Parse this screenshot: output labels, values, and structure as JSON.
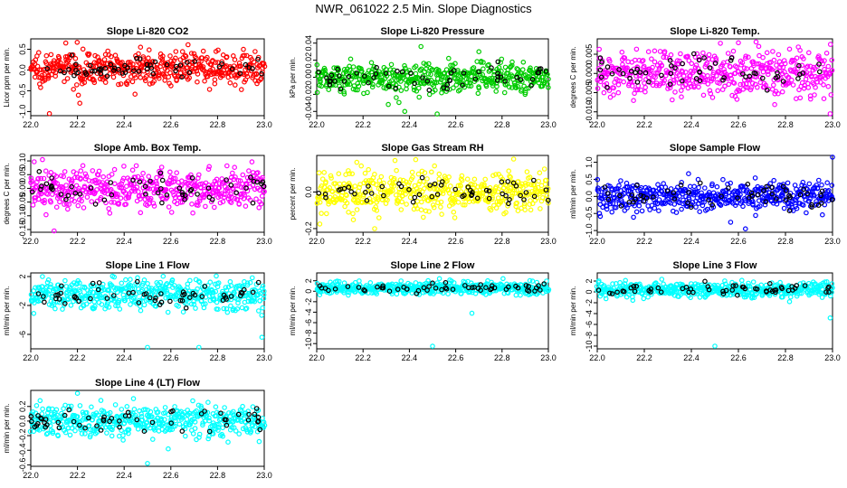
{
  "figure_title": "NWR_061022  2.5 Min. Slope Diagnostics",
  "chart_data": [
    {
      "type": "scatter",
      "title": "Slope Li-820 CO2",
      "xlabel": "",
      "ylabel": "Licor ppm per min.",
      "color": "#ff0000",
      "highlight_color": "#000000",
      "xlim": [
        22.0,
        23.0
      ],
      "ylim": [
        -1.1,
        0.75
      ],
      "xticks": [
        "22.0",
        "22.2",
        "22.4",
        "22.6",
        "22.8",
        "23.0"
      ],
      "yticks": [
        "-1.0",
        "-0.5",
        "0.0",
        "0.5"
      ],
      "yticks_values": [
        -1.0,
        -0.5,
        0.0,
        0.5
      ],
      "center": 0.05,
      "spread": 0.25,
      "outliers": [
        [
          22.08,
          -1.05
        ],
        [
          22.15,
          0.65
        ],
        [
          22.47,
          0.55
        ],
        [
          22.21,
          -0.8
        ]
      ]
    },
    {
      "type": "scatter",
      "title": "Slope Li-820 Pressure",
      "xlabel": "",
      "ylabel": "kPa per min.",
      "color": "#00cc00",
      "highlight_color": "#000000",
      "xlim": [
        22.0,
        23.0
      ],
      "ylim": [
        -0.045,
        0.045
      ],
      "xticks": [
        "22.0",
        "22.2",
        "22.4",
        "22.6",
        "22.8",
        "23.0"
      ],
      "yticks": [
        "-0.04",
        "-0.02",
        "0.00",
        "0.02",
        "0.04"
      ],
      "yticks_values": [
        -0.04,
        -0.02,
        0.0,
        0.02,
        0.04
      ],
      "center": 0.0,
      "spread": 0.012,
      "outliers": [
        [
          22.38,
          -0.04
        ],
        [
          22.45,
          0.036
        ],
        [
          22.52,
          -0.043
        ],
        [
          22.7,
          0.03
        ]
      ]
    },
    {
      "type": "scatter",
      "title": "Slope Li-820 Temp.",
      "xlabel": "",
      "ylabel": "degrees C per min.",
      "color": "#ff00ff",
      "highlight_color": "#000000",
      "xlim": [
        22.0,
        23.0
      ],
      "ylim": [
        -0.011,
        0.009
      ],
      "xticks": [
        "22.0",
        "22.2",
        "22.4",
        "22.6",
        "22.8",
        "23.0"
      ],
      "yticks": [
        "-0.010",
        "-0.005",
        "0.000",
        "0.005"
      ],
      "yticks_values": [
        -0.01,
        -0.005,
        0.0,
        0.005
      ],
      "center": 0.0,
      "spread": 0.004,
      "outliers": [
        [
          22.99,
          -0.0105
        ],
        [
          22.6,
          0.008
        ]
      ]
    },
    {
      "type": "scatter",
      "title": "Slope Amb. Box Temp.",
      "xlabel": "",
      "ylabel": "degrees C per min.",
      "color": "#ff00ff",
      "highlight_color": "#000000",
      "xlim": [
        22.0,
        23.0
      ],
      "ylim": [
        -0.16,
        0.12
      ],
      "xticks": [
        "22.0",
        "22.2",
        "22.4",
        "22.6",
        "22.8",
        "23.0"
      ],
      "yticks": [
        "-0.15",
        "-0.10",
        "-0.05",
        "0.00",
        "0.05",
        "0.10"
      ],
      "yticks_values": [
        -0.15,
        -0.1,
        -0.05,
        0.0,
        0.05,
        0.1
      ],
      "center": 0.0,
      "spread": 0.05,
      "outliers": [
        [
          22.1,
          -0.155
        ],
        [
          22.05,
          0.105
        ]
      ]
    },
    {
      "type": "scatter",
      "title": "Slope Gas Stream RH",
      "xlabel": "",
      "ylabel": "percent per min.",
      "color": "#ffff00",
      "highlight_color": "#000000",
      "xlim": [
        22.0,
        23.0
      ],
      "ylim": [
        -0.22,
        0.2
      ],
      "xticks": [
        "22.0",
        "22.2",
        "22.4",
        "22.6",
        "22.8",
        "23.0"
      ],
      "yticks": [
        "-0.2",
        "0.0"
      ],
      "yticks_values": [
        -0.2,
        0.0
      ],
      "center": 0.0,
      "spread": 0.07,
      "outliers": [
        [
          22.25,
          -0.2
        ],
        [
          22.85,
          0.18
        ]
      ]
    },
    {
      "type": "scatter",
      "title": "Slope Sample Flow",
      "xlabel": "",
      "ylabel": "ml/min per min.",
      "color": "#0000ff",
      "highlight_color": "#000000",
      "xlim": [
        22.0,
        23.0
      ],
      "ylim": [
        -1.05,
        1.2
      ],
      "xticks": [
        "22.0",
        "22.2",
        "22.4",
        "22.6",
        "22.8",
        "23.0"
      ],
      "yticks": [
        "-1.0",
        "-0.5",
        "0.0",
        "0.5",
        "1.0"
      ],
      "yticks_values": [
        -1.0,
        -0.5,
        0.0,
        0.5,
        1.0
      ],
      "center": 0.0,
      "spread": 0.28,
      "outliers": [
        [
          23.0,
          1.15
        ],
        [
          22.63,
          -0.95
        ]
      ]
    },
    {
      "type": "scatter",
      "title": "Slope Line 1 Flow",
      "xlabel": "",
      "ylabel": "ml/min per min.",
      "color": "#00ffff",
      "highlight_color": "#000000",
      "xlim": [
        22.0,
        23.0
      ],
      "ylim": [
        -8.0,
        2.5
      ],
      "xticks": [
        "22.0",
        "22.2",
        "22.4",
        "22.6",
        "22.8",
        "23.0"
      ],
      "yticks": [
        "-6",
        "-2",
        "2"
      ],
      "yticks_values": [
        -6,
        -2,
        2
      ],
      "center": -0.5,
      "spread": 1.4,
      "outliers": [
        [
          22.5,
          -7.8
        ],
        [
          22.72,
          -7.8
        ],
        [
          22.99,
          -6.4
        ],
        [
          22.05,
          2.0
        ]
      ]
    },
    {
      "type": "scatter",
      "title": "Slope Line 2 Flow",
      "xlabel": "",
      "ylabel": "ml/min per min.",
      "color": "#00ffff",
      "highlight_color": "#000000",
      "xlim": [
        22.0,
        23.0
      ],
      "ylim": [
        -11.0,
        3.5
      ],
      "xticks": [
        "22.0",
        "22.2",
        "22.4",
        "22.6",
        "22.8",
        "23.0"
      ],
      "yticks": [
        "-10",
        "-8",
        "-6",
        "-4",
        "-2",
        "0",
        "2"
      ],
      "yticks_values": [
        -10,
        -8,
        -6,
        -4,
        -2,
        0,
        2
      ],
      "center": 0.6,
      "spread": 0.8,
      "outliers": [
        [
          22.5,
          -10.5
        ],
        [
          22.67,
          -4.2
        ]
      ]
    },
    {
      "type": "scatter",
      "title": "Slope Line 3 Flow",
      "xlabel": "",
      "ylabel": "ml/min per min.",
      "color": "#00ffff",
      "highlight_color": "#000000",
      "xlim": [
        22.0,
        23.0
      ],
      "ylim": [
        -10.5,
        3.5
      ],
      "xticks": [
        "22.0",
        "22.2",
        "22.4",
        "22.6",
        "22.8",
        "23.0"
      ],
      "yticks": [
        "-10",
        "-8",
        "-6",
        "-4",
        "-2",
        "0",
        "2"
      ],
      "yticks_values": [
        -10,
        -8,
        -6,
        -4,
        -2,
        0,
        2
      ],
      "center": 0.4,
      "spread": 0.9,
      "outliers": [
        [
          22.5,
          -10.0
        ],
        [
          22.99,
          -4.8
        ]
      ]
    },
    {
      "type": "scatter",
      "title": "Slope Line 4 (LT) Flow",
      "xlabel": "",
      "ylabel": "ml/min per min.",
      "color": "#00ffff",
      "highlight_color": "#000000",
      "xlim": [
        22.0,
        23.0
      ],
      "ylim": [
        -0.62,
        0.42
      ],
      "xticks": [
        "22.0",
        "22.2",
        "22.4",
        "22.6",
        "22.8",
        "23.0"
      ],
      "yticks": [
        "-0.6",
        "-0.4",
        "-0.2",
        "0.0",
        "0.2"
      ],
      "yticks_values": [
        -0.6,
        -0.4,
        -0.2,
        0.0,
        0.2
      ],
      "center": 0.0,
      "spread": 0.14,
      "outliers": [
        [
          22.5,
          -0.58
        ],
        [
          22.2,
          0.38
        ],
        [
          22.04,
          0.28
        ]
      ]
    }
  ]
}
